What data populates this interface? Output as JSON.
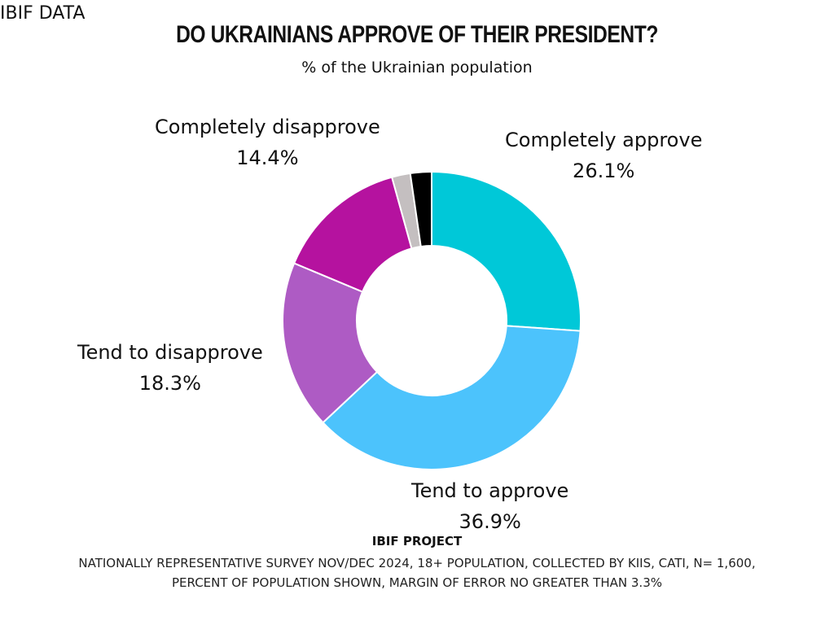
{
  "brand": "IBIF DATA",
  "chart_data": {
    "type": "pie",
    "donut": true,
    "title": "DO UKRAINIANS APPROVE OF THEIR PRESIDENT?",
    "subtitle": "% of the Ukrainian population",
    "slices": [
      {
        "label": "Completely approve",
        "value": 26.1,
        "value_label": "26.1%",
        "color": "#00C8D8"
      },
      {
        "label": "Tend to approve",
        "value": 36.9,
        "value_label": "36.9%",
        "color": "#4CC3FC"
      },
      {
        "label": "Tend to disapprove",
        "value": 18.3,
        "value_label": "18.3%",
        "color": "#AE5BC4"
      },
      {
        "label": "Completely disapprove",
        "value": 14.4,
        "value_label": "14.4%",
        "color": "#B5129F"
      },
      {
        "label": "",
        "value": 2.0,
        "value_label": "",
        "color": "#C4BFC0"
      },
      {
        "label": "",
        "value": 2.3,
        "value_label": "",
        "color": "#000000"
      }
    ]
  },
  "footer": {
    "project": "IBIF PROJECT",
    "note_line1": "NATIONALLY REPRESENTATIVE SURVEY NOV/DEC 2024, 18+ POPULATION, COLLECTED BY KIIS, CATI, N= 1,600,",
    "note_line2": "PERCENT OF POPULATION SHOWN, MARGIN OF ERROR NO GREATER THAN 3.3%"
  }
}
